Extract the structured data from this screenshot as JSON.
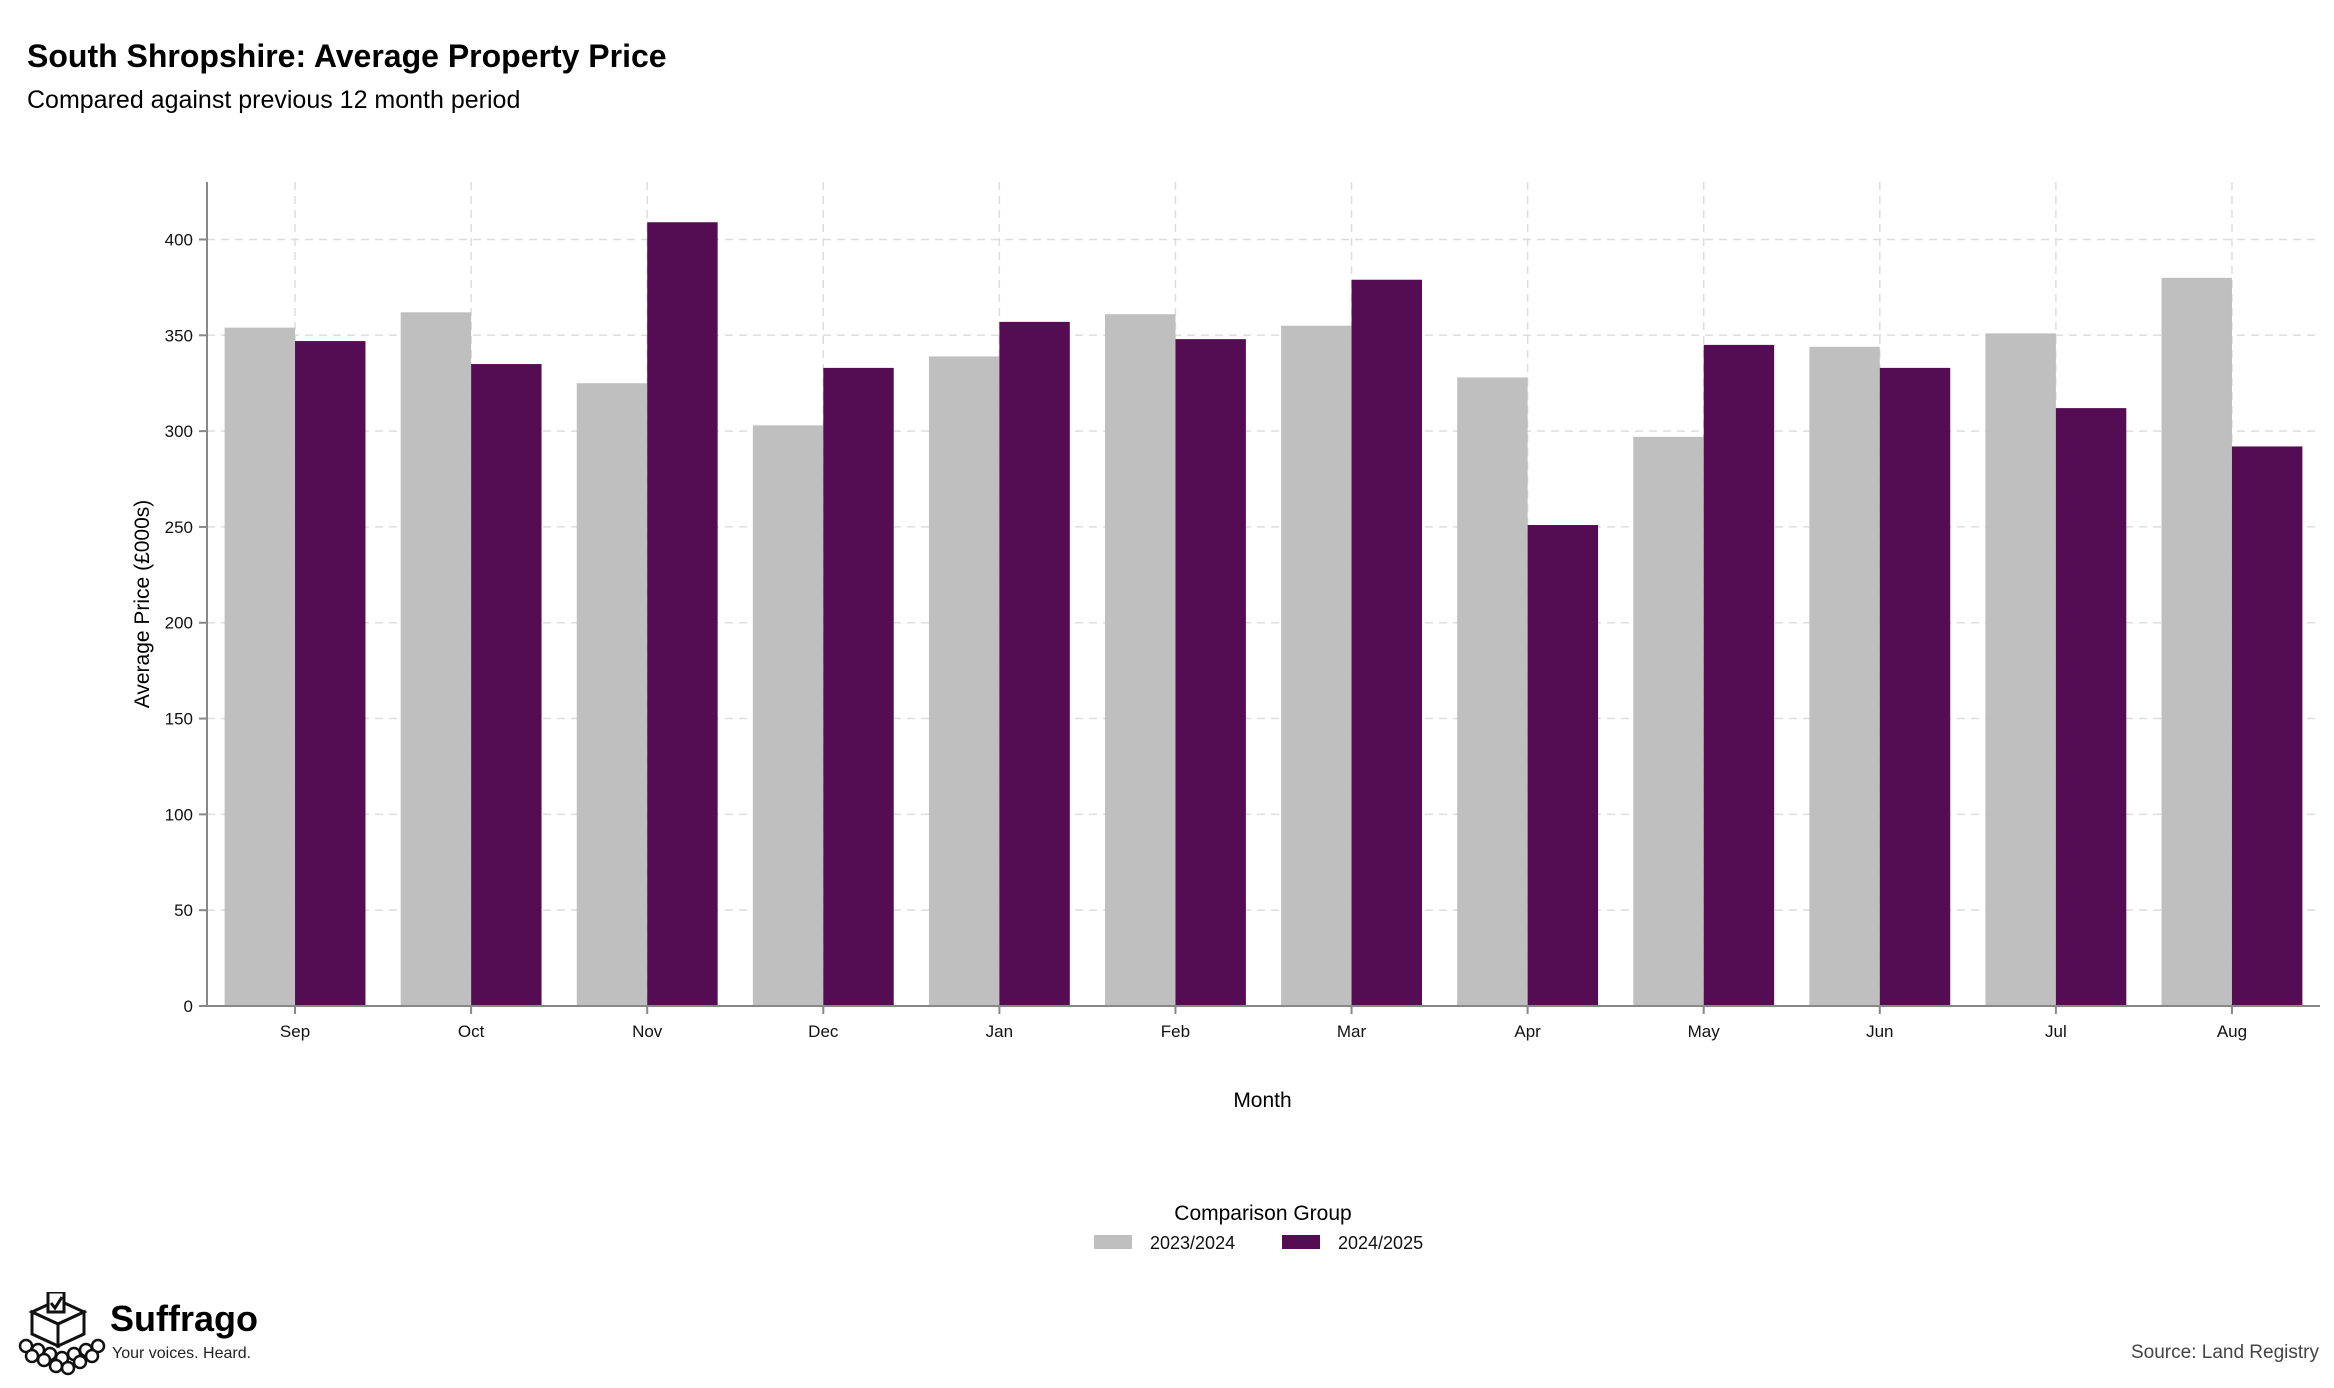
{
  "header": {
    "title": "South Shropshire: Average Property Price",
    "subtitle": "Compared against previous 12 month period"
  },
  "branding": {
    "name": "Suffrago",
    "tagline": "Your voices. Heard.",
    "logo_icon": "ballot-box-icon"
  },
  "footer": {
    "source": "Source: Land Registry"
  },
  "colors": {
    "series_2023": "#bfbfbf",
    "series_2024": "#540d52",
    "grid": "#dddddd",
    "axis": "#888888"
  },
  "chart_data": {
    "type": "bar",
    "title": "South Shropshire: Average Property Price",
    "subtitle": "Compared against previous 12 month period",
    "xlabel": "Month",
    "ylabel": "Average Price (£000s)",
    "ylim": [
      0,
      430
    ],
    "yticks": [
      0,
      50,
      100,
      150,
      200,
      250,
      300,
      350,
      400
    ],
    "grid": true,
    "legend_title": "Comparison Group",
    "legend_position": "bottom-center",
    "categories": [
      "Sep",
      "Oct",
      "Nov",
      "Dec",
      "Jan",
      "Feb",
      "Mar",
      "Apr",
      "May",
      "Jun",
      "Jul",
      "Aug"
    ],
    "series": [
      {
        "name": "2023/2024",
        "values": [
          354,
          362,
          325,
          303,
          339,
          361,
          355,
          328,
          297,
          344,
          351,
          380
        ]
      },
      {
        "name": "2024/2025",
        "values": [
          347,
          335,
          409,
          333,
          357,
          348,
          379,
          251,
          345,
          333,
          312,
          292
        ]
      }
    ]
  }
}
